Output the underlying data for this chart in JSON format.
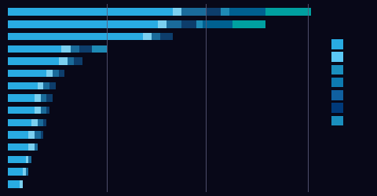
{
  "background_color": "#080818",
  "segment_colors": [
    "#29abe2",
    "#7bd0f0",
    "#1a6b9a",
    "#0d3d6b",
    "#1e8ab5",
    "#006090",
    "#00a0a0"
  ],
  "legend_colors": [
    "#29abe2",
    "#5bc8f5",
    "#1a8fbe",
    "#0d7ab0",
    "#1060a0",
    "#003a7a",
    "#1a8fbe"
  ],
  "bars": [
    [
      55,
      3,
      8,
      5,
      3,
      12,
      15
    ],
    [
      50,
      3,
      5,
      5,
      2,
      10,
      11
    ],
    [
      45,
      3,
      3,
      4,
      0,
      0,
      0
    ],
    [
      18,
      3,
      3,
      4,
      5,
      0,
      0
    ],
    [
      17,
      3,
      2,
      3,
      0,
      0,
      0
    ],
    [
      13,
      2,
      2,
      2,
      0,
      0,
      0
    ],
    [
      10,
      2,
      2,
      2,
      0,
      0,
      0
    ],
    [
      9,
      2,
      2,
      2,
      0,
      0,
      0
    ],
    [
      9,
      2,
      2,
      1,
      0,
      0,
      0
    ],
    [
      8,
      2,
      2,
      1,
      0,
      0,
      0
    ],
    [
      7,
      2,
      2,
      1,
      0,
      0,
      0
    ],
    [
      7,
      2,
      1,
      0,
      0,
      0,
      0
    ],
    [
      6,
      1,
      1,
      0,
      0,
      0,
      0
    ],
    [
      5,
      1,
      1,
      0,
      0,
      0,
      0
    ],
    [
      4,
      1,
      0,
      0,
      0,
      0,
      0
    ]
  ],
  "vline_x": [
    33,
    66,
    100
  ],
  "vline_color": "#5a5a7a",
  "xlim": [
    0,
    103
  ],
  "figsize": [
    4.8,
    2.5
  ],
  "dpi": 100,
  "bar_height": 0.6,
  "bar_gap": 0.4
}
